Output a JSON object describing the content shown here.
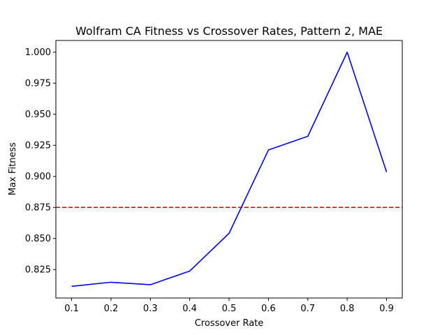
{
  "chart_data": {
    "type": "line",
    "title": "Wolfram CA Fitness vs Crossover Rates, Pattern 2, MAE",
    "xlabel": "Crossover Rate",
    "ylabel": "Max Fitness",
    "x": [
      0.1,
      0.2,
      0.3,
      0.4,
      0.5,
      0.6,
      0.7,
      0.8,
      0.9
    ],
    "series": [
      {
        "values": [
          0.8115,
          0.8148,
          0.8128,
          0.8238,
          0.8542,
          0.9213,
          0.9323,
          1.0,
          0.9035
        ],
        "color": "#0000ff"
      }
    ],
    "reference_line": {
      "y": 0.875,
      "color": "#ff0000",
      "style": "dashed"
    },
    "xticks": [
      "0.1",
      "0.2",
      "0.3",
      "0.4",
      "0.5",
      "0.6",
      "0.7",
      "0.8",
      "0.9"
    ],
    "yticks": [
      "0.825",
      "0.850",
      "0.875",
      "0.900",
      "0.925",
      "0.950",
      "0.975",
      "1.000"
    ],
    "xlim": [
      0.06,
      0.94
    ],
    "ylim": [
      0.8021,
      1.0094
    ],
    "grid": false,
    "legend": "none"
  }
}
